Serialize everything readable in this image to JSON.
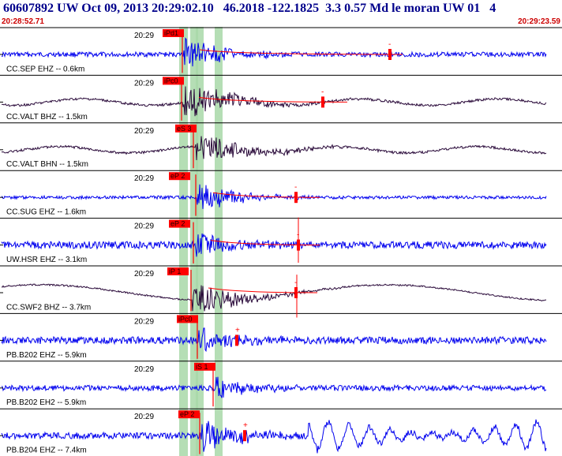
{
  "header": {
    "title": "60607892 UW Oct 09, 2013 20:29:02.10   46.2018 -122.1825  3.3 0.57 Md le moran UW 01   4",
    "start_time": "20:28:52.71",
    "end_time": "20:29:23.59"
  },
  "colors": {
    "trace_blue": "#0000ee",
    "trace_dark": "#2a0a3a",
    "pick_red": "#ff0000",
    "window_green": "#a8d8a8",
    "header_text": "#00008b",
    "time_text": "#cc0000"
  },
  "chart_data": {
    "type": "seismogram",
    "time_range": [
      "20:28:52.71",
      "20:29:23.59"
    ],
    "traces": [
      {
        "label": "CC.SEP EHZ -- 0.6km",
        "time_tick": "20:29",
        "pick": "iPd1",
        "marker": "-",
        "color": "blue"
      },
      {
        "label": "CC.VALT BHZ -- 1.5km",
        "time_tick": "20:29",
        "pick": "iPc0",
        "marker": "-",
        "color": "dark"
      },
      {
        "label": "CC.VALT BHN -- 1.5km",
        "time_tick": "20:29",
        "pick": "eS 3",
        "marker": "",
        "color": "dark"
      },
      {
        "label": "CC.SUG EHZ -- 1.6km",
        "time_tick": "20:29",
        "pick": "eP 2",
        "marker": "-",
        "color": "blue"
      },
      {
        "label": "UW.HSR EHZ -- 3.1km",
        "time_tick": "20:29",
        "pick": "eP 2",
        "marker": "-",
        "color": "blue"
      },
      {
        "label": "CC.SWF2 BHZ -- 3.7km",
        "time_tick": "20:29",
        "pick": "iP 1",
        "marker": "-",
        "color": "dark"
      },
      {
        "label": "PB.B202 EHZ -- 5.9km",
        "time_tick": "20:29",
        "pick": "iPc0",
        "marker": "+",
        "color": "blue"
      },
      {
        "label": "PB.B202 EH2 -- 5.9km",
        "time_tick": "20:29",
        "pick": "iS 1",
        "marker": "",
        "color": "blue"
      },
      {
        "label": "PB.B204 EHZ -- 7.4km",
        "time_tick": "20:29",
        "pick": "eP 2",
        "marker": "+",
        "color": "blue"
      }
    ]
  }
}
